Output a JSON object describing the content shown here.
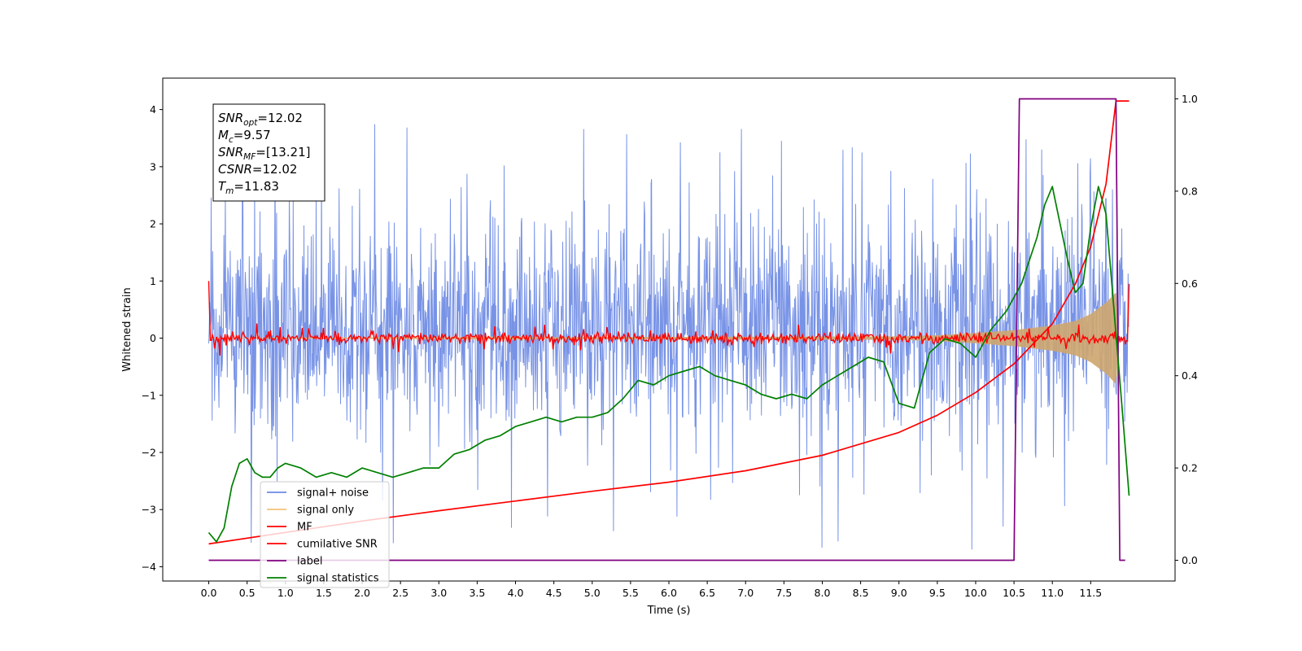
{
  "chart_data": {
    "type": "line",
    "title": "",
    "xlabel": "Time (s)",
    "ylabel": "Whitened strain",
    "ylabel_right": "",
    "xlim": [
      -0.6,
      12.6
    ],
    "ylim": [
      -4.25,
      4.55
    ],
    "ylim_right": [
      -0.045,
      1.045
    ],
    "x_ticks": [
      0.0,
      0.5,
      1.0,
      1.5,
      2.0,
      2.5,
      3.0,
      3.5,
      4.0,
      4.5,
      5.0,
      5.5,
      6.0,
      6.5,
      7.0,
      7.5,
      8.0,
      8.5,
      9.0,
      9.5,
      10.0,
      10.5,
      11.0,
      11.5
    ],
    "x_tick_labels": [
      "0.0",
      "0.5",
      "1.0",
      "1.5",
      "2.0",
      "2.5",
      "3.0",
      "3.5",
      "4.0",
      "4.5",
      "5.0",
      "5.5",
      "6.0",
      "6.5",
      "7.0",
      "7.5",
      "8.0",
      "8.5",
      "9.0",
      "9.5",
      "10.0",
      "10.5",
      "11.0",
      "11.5"
    ],
    "y_ticks": [
      -4,
      -3,
      -2,
      -1,
      0,
      1,
      2,
      3,
      4
    ],
    "y_tick_labels": [
      "−4",
      "−3",
      "−2",
      "−1",
      "0",
      "1",
      "2",
      "3",
      "4"
    ],
    "y_ticks_right": [
      0.0,
      0.2,
      0.4,
      0.6,
      0.8,
      1.0
    ],
    "y_tick_labels_right": [
      "0.0",
      "0.2",
      "0.4",
      "0.6",
      "0.8",
      "1.0"
    ],
    "grid": false,
    "legend_position": "lower-left",
    "annotation_lines": [
      {
        "base": "SNR",
        "sub": "opt",
        "rest": "=12.02"
      },
      {
        "base": "M",
        "sub": "c",
        "rest": "=9.57"
      },
      {
        "base": "SNR",
        "sub": "MF",
        "rest": "=[13.21]"
      },
      {
        "base": "CSNR",
        "sub": "",
        "rest": "=12.02"
      },
      {
        "base": "T",
        "sub": "m",
        "rest": "=11.83"
      }
    ],
    "noise_envelope": {
      "x_start": 0.0,
      "x_end": 12.0,
      "typical_min": -1.6,
      "typical_max": 2.0,
      "peak_max": 4.15,
      "peak_min": -3.75
    },
    "series": [
      {
        "name": "signal+ noise",
        "axis": "left",
        "color": "#6c8ae4",
        "kind": "noise"
      },
      {
        "name": "signal only",
        "axis": "left",
        "color": "#f5c37a",
        "kind": "chirp",
        "x": [
          0.0,
          9.0,
          9.5,
          10.0,
          10.5,
          11.0,
          11.3,
          11.5,
          11.7,
          11.83,
          11.87
        ],
        "amplitude": [
          0.0,
          0.03,
          0.05,
          0.09,
          0.14,
          0.22,
          0.3,
          0.42,
          0.62,
          0.8,
          0.0
        ]
      },
      {
        "name": "MF",
        "axis": "left",
        "color": "#ff0000",
        "kind": "mf",
        "typical_amplitude": 0.08,
        "start_value": 1.0,
        "end_value": 0.95
      },
      {
        "name": "cumilative SNR",
        "axis": "left",
        "color": "#ff0000",
        "kind": "line",
        "x": [
          0.0,
          1.0,
          2.0,
          3.0,
          4.0,
          5.0,
          6.0,
          7.0,
          8.0,
          9.0,
          9.5,
          10.0,
          10.5,
          11.0,
          11.3,
          11.5,
          11.7,
          11.83,
          12.0
        ],
        "y": [
          -3.6,
          -3.4,
          -3.2,
          -3.02,
          -2.85,
          -2.68,
          -2.52,
          -2.32,
          -2.05,
          -1.65,
          -1.35,
          -0.95,
          -0.45,
          0.25,
          0.95,
          1.6,
          2.7,
          4.15,
          4.15
        ]
      },
      {
        "name": "label",
        "axis": "right",
        "color": "#800080",
        "kind": "line",
        "x": [
          0.0,
          10.5,
          10.57,
          11.83,
          11.88,
          11.95
        ],
        "y": [
          0.0,
          0.0,
          1.0,
          1.0,
          0.0,
          0.0
        ]
      },
      {
        "name": "signal statistics",
        "axis": "right",
        "color": "#008000",
        "kind": "line",
        "x": [
          0.0,
          0.1,
          0.2,
          0.3,
          0.4,
          0.5,
          0.6,
          0.7,
          0.8,
          0.9,
          1.0,
          1.2,
          1.4,
          1.6,
          1.8,
          2.0,
          2.2,
          2.4,
          2.6,
          2.8,
          3.0,
          3.2,
          3.4,
          3.6,
          3.8,
          4.0,
          4.2,
          4.4,
          4.6,
          4.8,
          5.0,
          5.2,
          5.4,
          5.6,
          5.8,
          6.0,
          6.2,
          6.4,
          6.6,
          6.8,
          7.0,
          7.2,
          7.4,
          7.6,
          7.8,
          8.0,
          8.2,
          8.4,
          8.6,
          8.8,
          9.0,
          9.2,
          9.4,
          9.6,
          9.8,
          10.0,
          10.2,
          10.4,
          10.6,
          10.8,
          10.9,
          11.0,
          11.1,
          11.2,
          11.3,
          11.4,
          11.5,
          11.6,
          11.7,
          11.8,
          11.9,
          12.0
        ],
        "y": [
          0.06,
          0.04,
          0.07,
          0.16,
          0.21,
          0.22,
          0.19,
          0.18,
          0.18,
          0.2,
          0.21,
          0.2,
          0.18,
          0.19,
          0.18,
          0.2,
          0.19,
          0.18,
          0.19,
          0.2,
          0.2,
          0.23,
          0.24,
          0.26,
          0.27,
          0.29,
          0.3,
          0.31,
          0.3,
          0.31,
          0.31,
          0.32,
          0.35,
          0.39,
          0.38,
          0.4,
          0.41,
          0.42,
          0.4,
          0.39,
          0.38,
          0.36,
          0.35,
          0.36,
          0.35,
          0.38,
          0.4,
          0.42,
          0.44,
          0.43,
          0.34,
          0.33,
          0.45,
          0.48,
          0.47,
          0.44,
          0.5,
          0.54,
          0.6,
          0.7,
          0.77,
          0.81,
          0.73,
          0.65,
          0.58,
          0.6,
          0.72,
          0.81,
          0.75,
          0.55,
          0.35,
          0.14
        ]
      }
    ]
  }
}
